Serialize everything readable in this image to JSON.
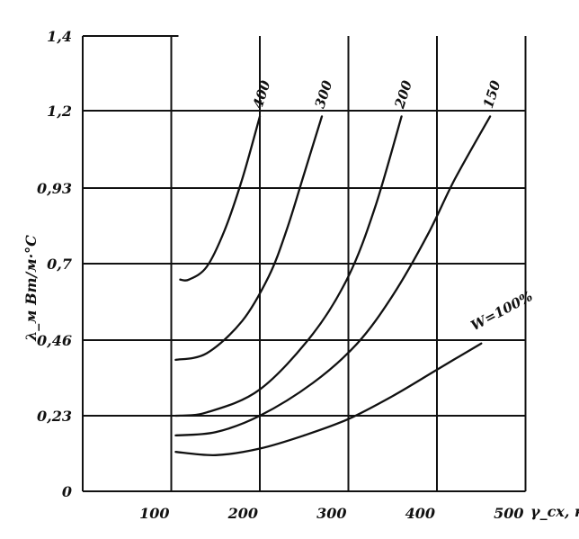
{
  "chart_data": {
    "type": "line",
    "title": "",
    "xlabel": "γ_сх, кг",
    "ylabel": "λ_м Вт/м·°С",
    "x_ticks": [
      "100",
      "200",
      "300",
      "400",
      "500"
    ],
    "y_ticks": [
      "0",
      "0,23",
      "0,46",
      "0,7",
      "0,93",
      "1,2",
      "1,4"
    ],
    "xlim": [
      0,
      500
    ],
    "grid": true,
    "legend": "none",
    "series": [
      {
        "name": "400",
        "x": [
          110,
          120,
          140,
          160,
          180,
          200
        ],
        "y": [
          0.65,
          0.65,
          0.69,
          0.8,
          0.96,
          1.18
        ]
      },
      {
        "name": "300",
        "x": [
          105,
          140,
          180,
          210,
          230,
          250,
          270
        ],
        "y": [
          0.4,
          0.42,
          0.52,
          0.66,
          0.8,
          0.98,
          1.18
        ]
      },
      {
        "name": "200",
        "x": [
          105,
          140,
          200,
          260,
          300,
          330,
          360
        ],
        "y": [
          0.23,
          0.24,
          0.31,
          0.48,
          0.66,
          0.87,
          1.18
        ]
      },
      {
        "name": "150",
        "x": [
          105,
          150,
          200,
          260,
          310,
          350,
          390,
          420,
          460
        ],
        "y": [
          0.17,
          0.18,
          0.23,
          0.33,
          0.45,
          0.6,
          0.79,
          0.96,
          1.18
        ]
      },
      {
        "name": "W=100%",
        "x": [
          105,
          150,
          200,
          250,
          300,
          350,
          400,
          450
        ],
        "y": [
          0.12,
          0.11,
          0.13,
          0.17,
          0.22,
          0.29,
          0.37,
          0.45
        ]
      }
    ]
  }
}
